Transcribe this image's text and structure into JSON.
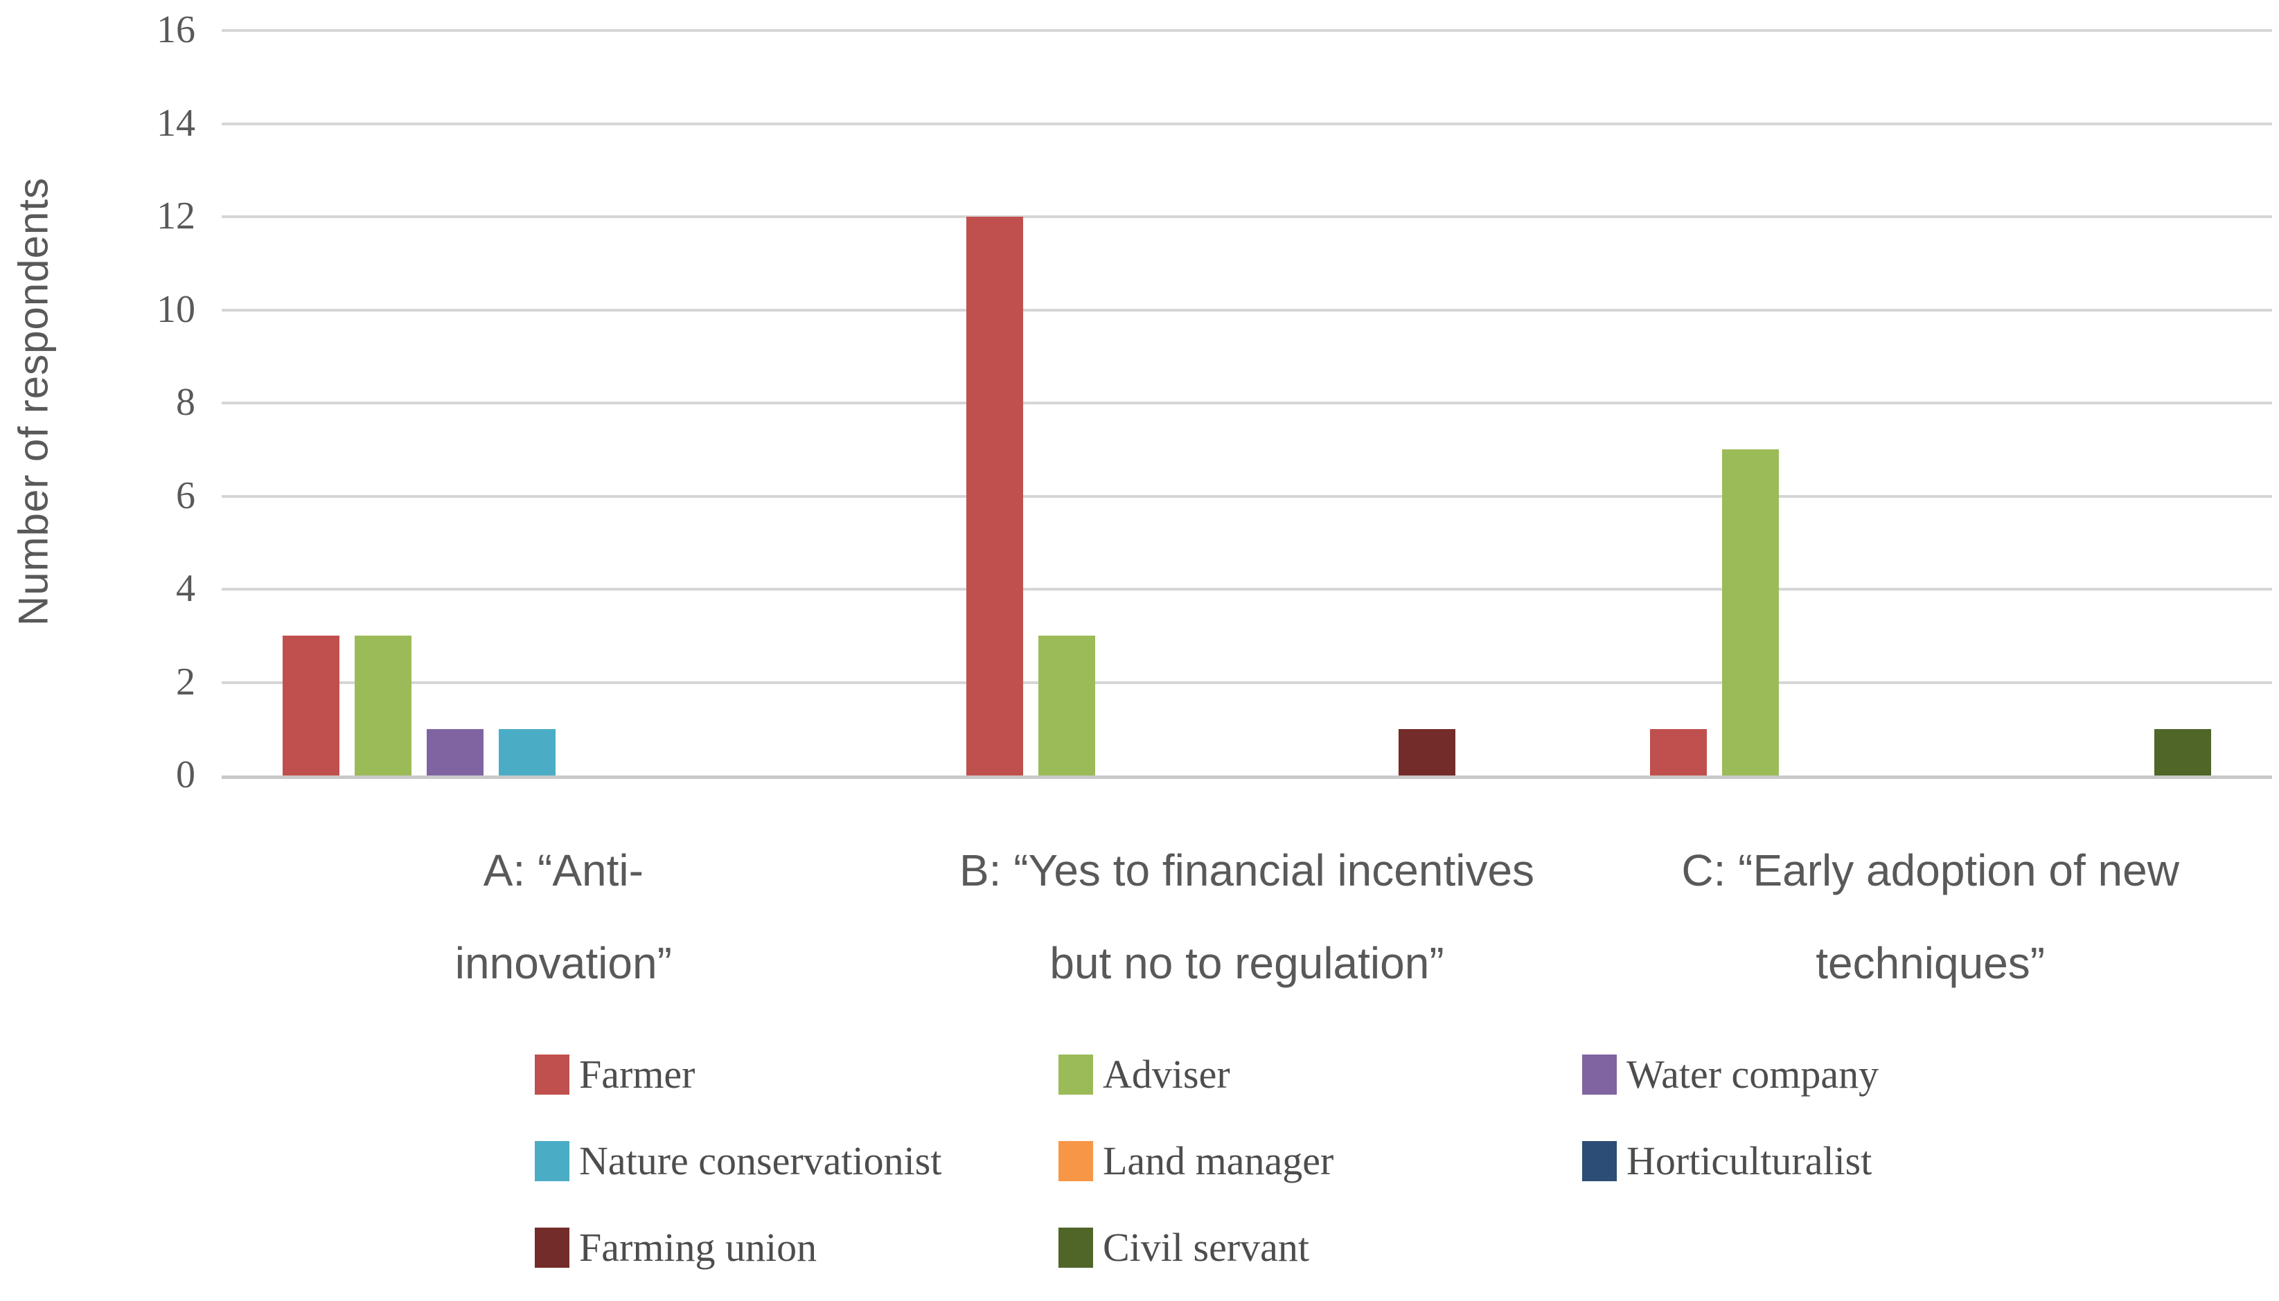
{
  "chart_data": {
    "type": "bar",
    "title": "",
    "ylabel": "Number of respondents",
    "xlabel": "",
    "ylim": [
      0,
      16
    ],
    "yticks": [
      0,
      2,
      4,
      6,
      8,
      10,
      12,
      14,
      16
    ],
    "grid": "horizontal",
    "legend_position": "bottom",
    "colors": {
      "gridline": "#d6d6d6",
      "axis_line": "#c9c9c9",
      "axis_text": "#595959",
      "legend_text": "#4d4d4d"
    },
    "categories": [
      {
        "lines": [
          "A: “Anti-",
          "innovation”"
        ]
      },
      {
        "lines": [
          "B: “Yes to financial incentives",
          "but no to regulation”"
        ]
      },
      {
        "lines": [
          "C: “Early adoption of new",
          "techniques”"
        ]
      }
    ],
    "series": [
      {
        "name": "Farmer",
        "color": "#C0504D",
        "values": [
          3,
          12,
          1
        ]
      },
      {
        "name": "Adviser",
        "color": "#9BBB59",
        "values": [
          3,
          3,
          7
        ]
      },
      {
        "name": "Water company",
        "color": "#8064A2",
        "values": [
          1,
          0,
          0
        ]
      },
      {
        "name": "Nature conservationist",
        "color": "#4BACC6",
        "values": [
          1,
          0,
          0
        ]
      },
      {
        "name": "Land manager",
        "color": "#F79646",
        "values": [
          0,
          0,
          0
        ]
      },
      {
        "name": "Horticulturalist",
        "color": "#2C4D75",
        "values": [
          0,
          0,
          0
        ]
      },
      {
        "name": "Farming union",
        "color": "#732C29",
        "values": [
          0,
          1,
          0
        ]
      },
      {
        "name": "Civil servant",
        "color": "#4F6628",
        "values": [
          0,
          0,
          1
        ]
      }
    ]
  }
}
